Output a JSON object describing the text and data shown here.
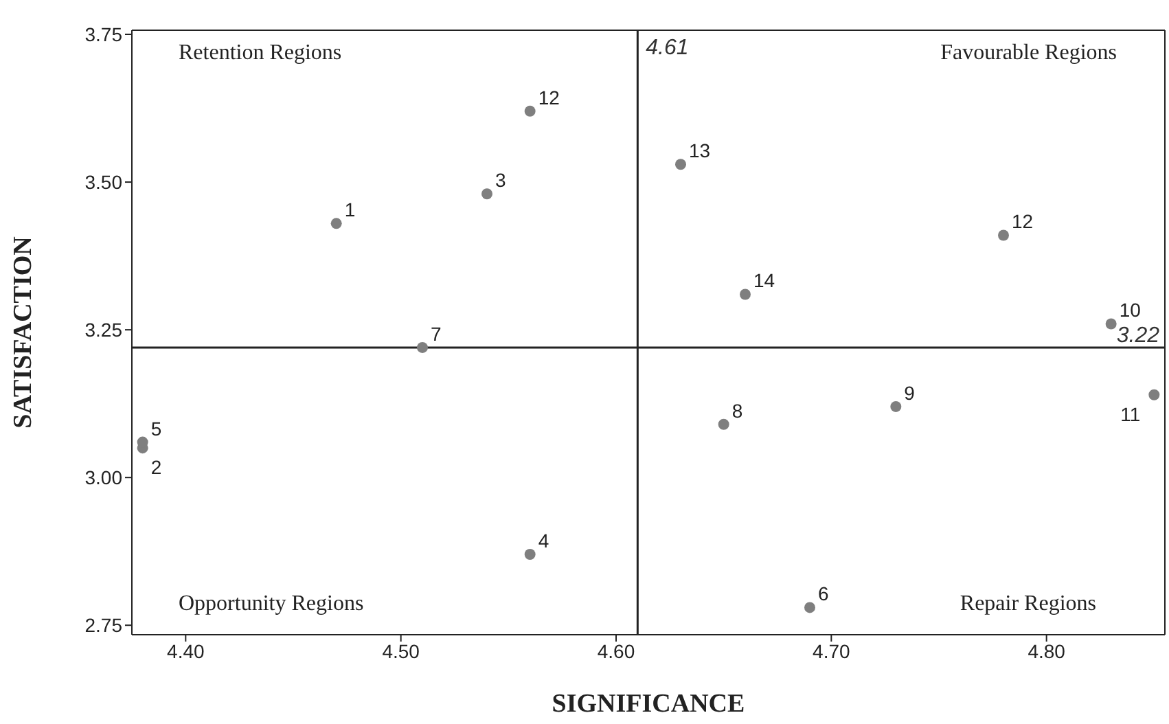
{
  "chart_data": {
    "type": "scatter",
    "xlabel": "SIGNIFICANCE",
    "ylabel": "SATISFACTION",
    "x": [
      4.47,
      4.38,
      4.54,
      4.56,
      4.38,
      4.69,
      4.51,
      4.65,
      4.73,
      4.83,
      4.85,
      4.56,
      4.78,
      4.63,
      4.66
    ],
    "series": [
      {
        "color": "#7f7f7f",
        "values": [
          3.43,
          3.05,
          3.48,
          2.87,
          3.06,
          2.78,
          3.22,
          3.09,
          3.12,
          3.26,
          3.14,
          3.62,
          3.41,
          3.53,
          3.31
        ]
      }
    ],
    "xlim": [
      4.375,
      4.855
    ],
    "ylim": [
      2.734,
      3.757
    ],
    "xticks": [
      {
        "value": 4.4,
        "label": "4.40"
      },
      {
        "value": 4.5,
        "label": "4.50"
      },
      {
        "value": 4.6,
        "label": "4.60"
      },
      {
        "value": 4.7,
        "label": "4.70"
      },
      {
        "value": 4.8,
        "label": "4.80"
      }
    ],
    "yticks": [
      {
        "value": 2.75,
        "label": "2.75"
      },
      {
        "value": 3,
        "label": "3.00"
      },
      {
        "value": 3.25,
        "label": "3.25"
      },
      {
        "value": 3.5,
        "label": "3.50"
      },
      {
        "value": 3.75,
        "label": "3.75"
      }
    ],
    "ref_lines": [
      {
        "axis": "x",
        "value": 4.61,
        "label": "4.61",
        "color": "#222222"
      },
      {
        "axis": "y",
        "value": 3.22,
        "label": "3.22",
        "color": "#222222"
      }
    ],
    "annotations": [
      "Retention Regions",
      "Favourable Regions",
      "Opportunity Regions",
      "Repair Regions",
      {
        "text": "1",
        "x": 4.47,
        "y": 3.43
      },
      {
        "text": "2",
        "x": 4.38,
        "y": 3.05
      },
      {
        "text": "3",
        "x": 4.54,
        "y": 3.48
      },
      {
        "text": "4",
        "x": 4.56,
        "y": 2.87
      },
      {
        "text": "5",
        "x": 4.38,
        "y": 3.06
      },
      {
        "text": "6",
        "x": 4.69,
        "y": 2.78
      },
      {
        "text": "7",
        "x": 4.51,
        "y": 3.22
      },
      {
        "text": "8",
        "x": 4.65,
        "y": 3.09
      },
      {
        "text": "9",
        "x": 4.73,
        "y": 3.12
      },
      {
        "text": "10",
        "x": 4.83,
        "y": 3.26
      },
      {
        "text": "11",
        "x": 4.85,
        "y": 3.14
      },
      {
        "text": "12",
        "x": 4.56,
        "y": 3.62
      },
      {
        "text": "12",
        "x": 4.78,
        "y": 3.41
      },
      {
        "text": "13",
        "x": 4.63,
        "y": 3.53
      },
      {
        "text": "14",
        "x": 4.66,
        "y": 3.31
      }
    ],
    "marker": "circle"
  }
}
